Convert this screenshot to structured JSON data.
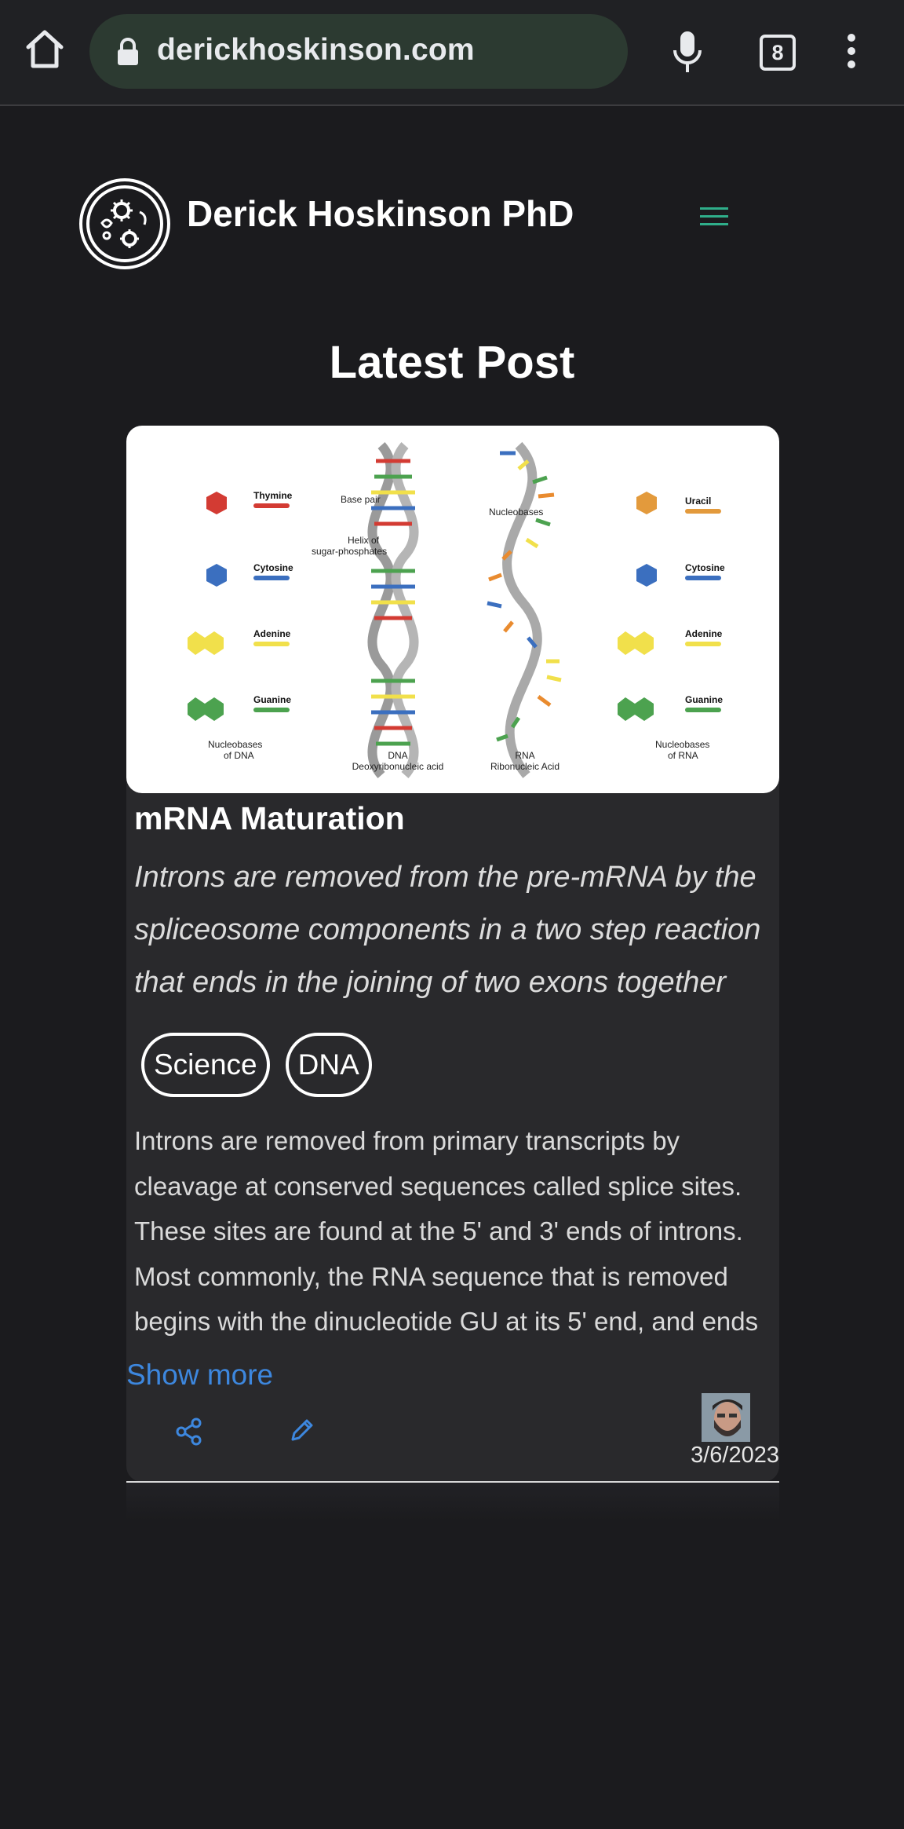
{
  "browser": {
    "url": "derickhoskinson.com",
    "tab_count": "8"
  },
  "site": {
    "title": "Derick Hoskinson PhD"
  },
  "section": {
    "title": "Latest Post"
  },
  "post": {
    "image_labels": {
      "thymine": "Thymine",
      "cytosine": "Cytosine",
      "adenine": "Adenine",
      "guanine": "Guanine",
      "uracil": "Uracil",
      "nucleobases_dna": "Nucleobases of DNA",
      "nucleobases_rna": "Nucleobases of RNA",
      "base_pair": "Base pair",
      "helix": "Helix of sugar-phosphates",
      "nucleobases": "Nucleobases",
      "dna": "DNA",
      "dna_full": "Deoxyribonucleic acid",
      "rna": "RNA",
      "rna_full": "Ribonucleic Acid"
    },
    "title": "mRNA Maturation",
    "excerpt": " Introns are removed from the pre-mRNA by the spliceosome components in a two step reaction that ends in the joining of two exons together",
    "tags": [
      "Science",
      "DNA"
    ],
    "body": " Introns are removed from primary transcripts by cleavage at conserved sequences called splice sites. These sites are found at the 5' and 3' ends of introns. Most commonly, the RNA sequence that is removed begins with the dinucleotide GU at its 5' end, and ends",
    "show_more": "Show more",
    "date": "3/6/2023"
  },
  "icons": {
    "home": "home-icon",
    "lock": "lock-icon",
    "mic": "mic-icon",
    "menu": "more-vert-icon",
    "hamburger": "hamburger-icon",
    "share": "share-icon",
    "edit": "pencil-icon"
  },
  "colors": {
    "page_bg": "#1b1b1e",
    "card_bg": "#29292c",
    "link": "#3d87de",
    "hamburger": "#2fae8a",
    "url_bar": "#2c3a31"
  }
}
